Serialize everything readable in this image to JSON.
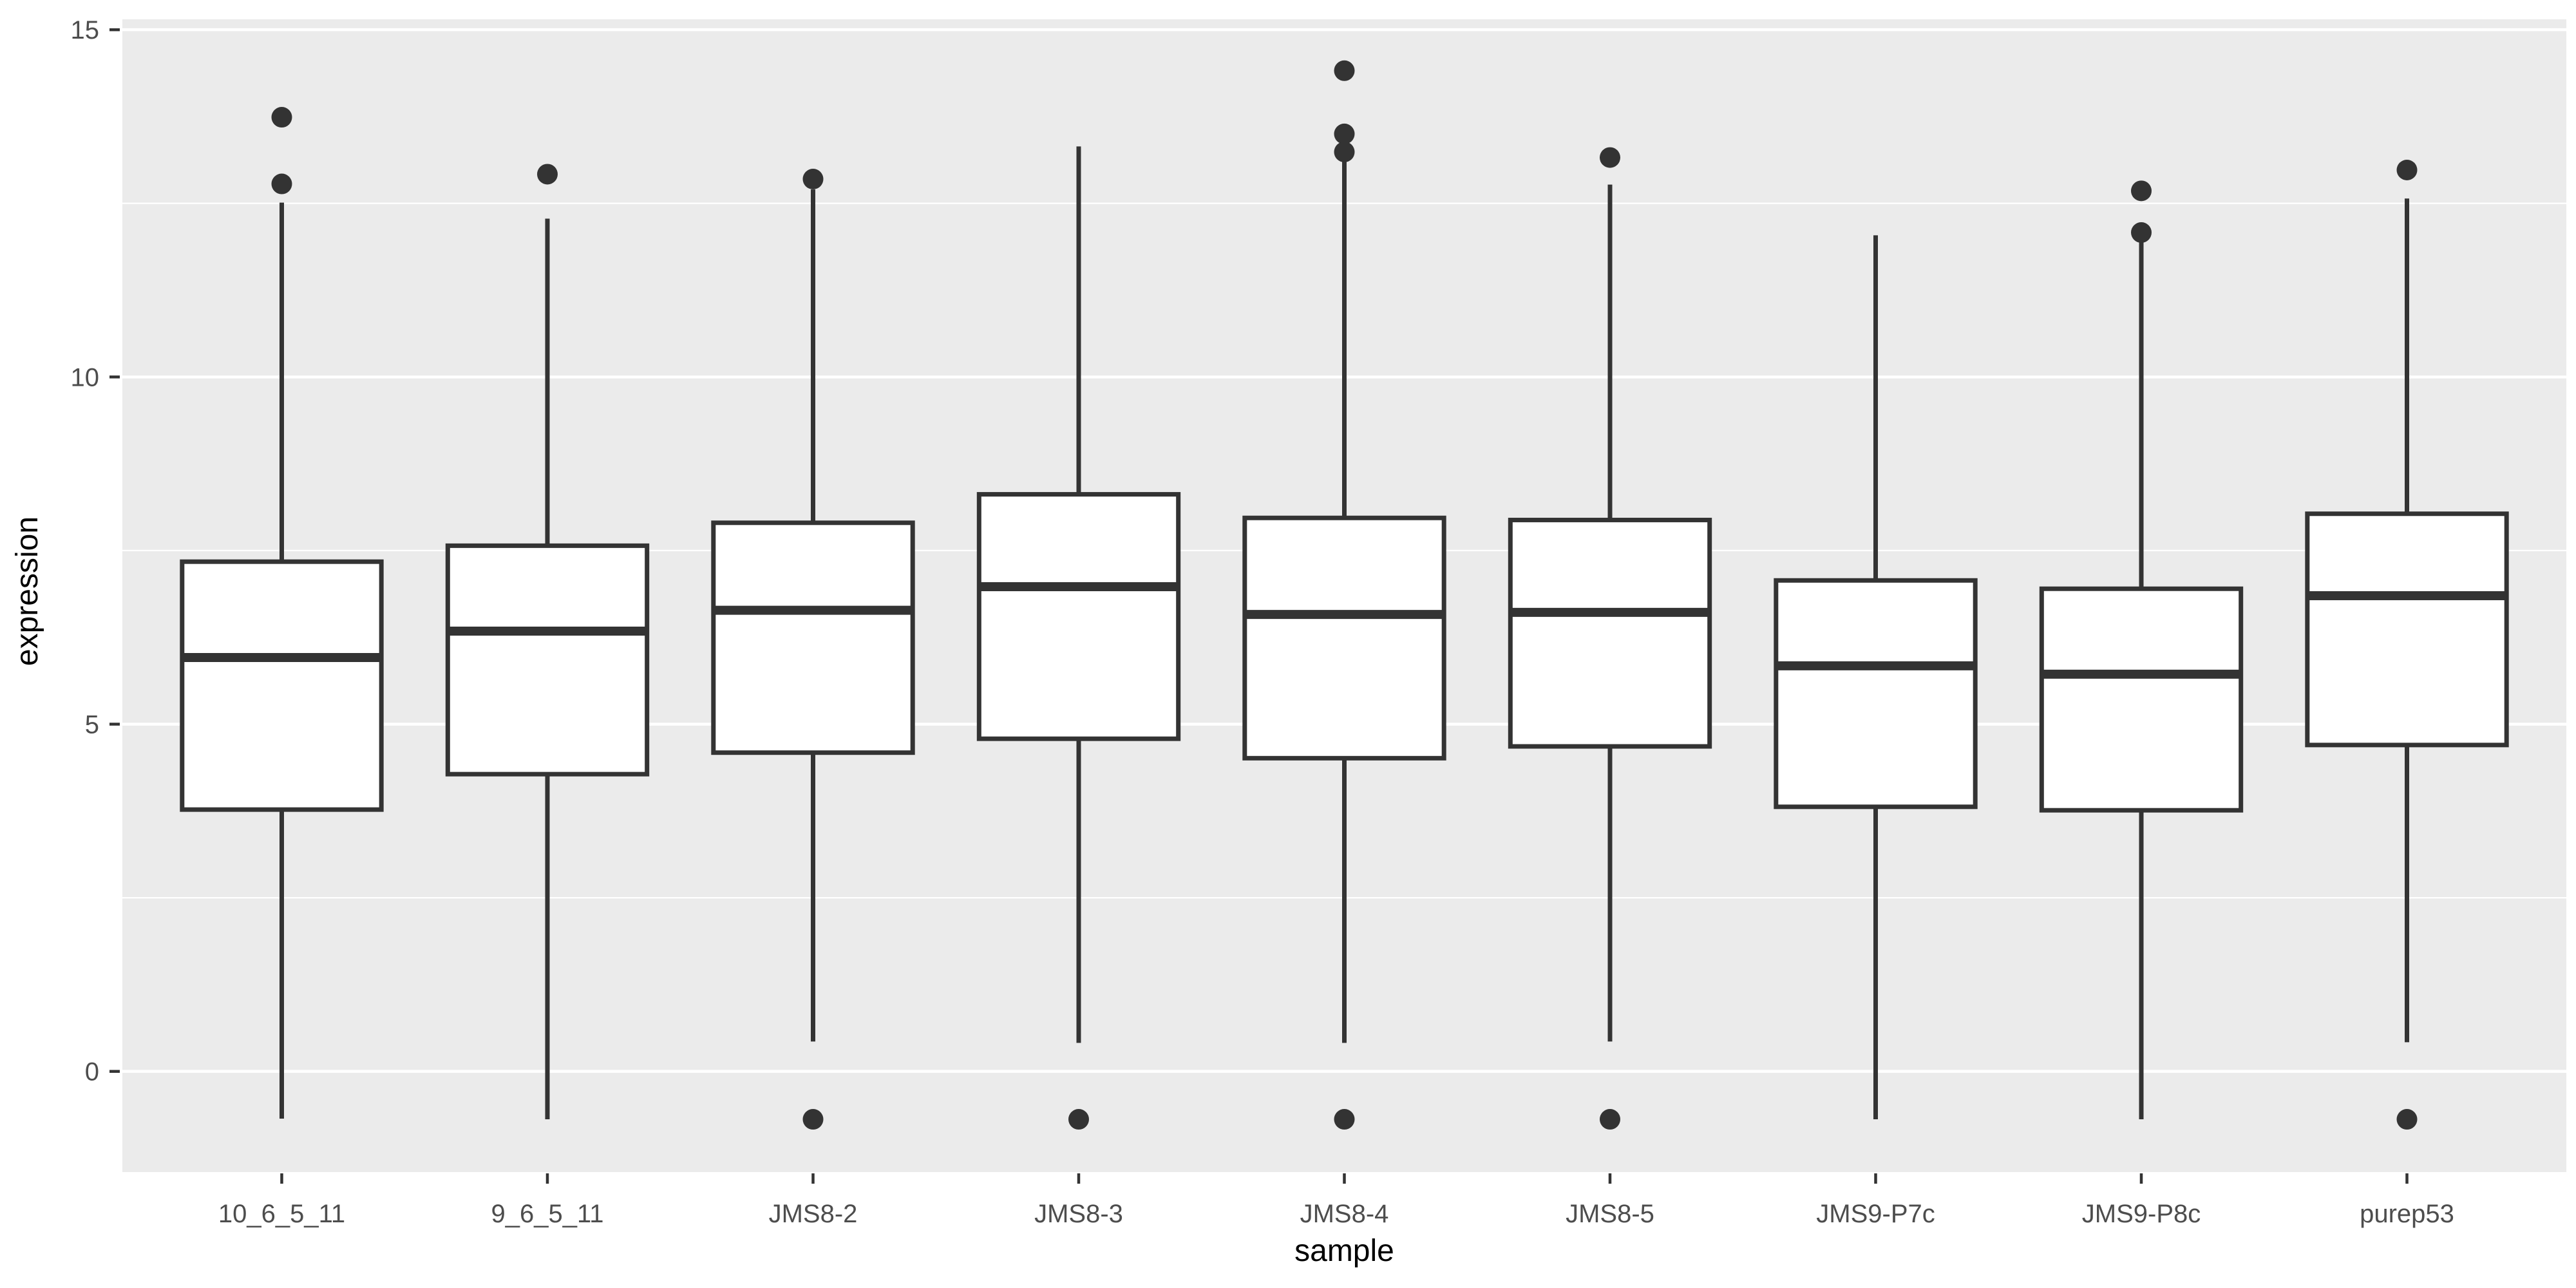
{
  "figure": {
    "background_color": "#FFFFFF",
    "panel_background_color": "#EBEBEB",
    "grid_color": "#FFFFFF",
    "box_fill_color": "#FFFFFF",
    "box_line_color": "#333333",
    "tick_label_color": "#4D4D4D",
    "axis_title_color": "#000000"
  },
  "chart_data": {
    "type": "boxplot",
    "title": "",
    "xlabel": "sample",
    "ylabel": "expression",
    "legend": "none",
    "grid": "on",
    "ylim": [
      -1.45,
      15.15
    ],
    "y_ticks": [
      0,
      5,
      10,
      15
    ],
    "y_tick_labels": [
      "0",
      "5",
      "10",
      "15"
    ],
    "y_minor_ticks": [
      2.5,
      7.5,
      12.5
    ],
    "categories": [
      "10_6_5_11",
      "9_6_5_11",
      "JMS8-2",
      "JMS8-3",
      "JMS8-4",
      "JMS8-5",
      "JMS9-P7c",
      "JMS9-P8c",
      "purep53"
    ],
    "series": [
      {
        "name": "10_6_5_11",
        "q1": 3.77,
        "median": 5.96,
        "q3": 7.34,
        "whisker_low": -0.68,
        "whisker_high": 12.51,
        "outliers": [
          12.78,
          13.74
        ]
      },
      {
        "name": "9_6_5_11",
        "q1": 4.28,
        "median": 6.34,
        "q3": 7.57,
        "whisker_low": -0.69,
        "whisker_high": 12.28,
        "outliers": [
          12.92
        ]
      },
      {
        "name": "JMS8-2",
        "q1": 4.59,
        "median": 6.64,
        "q3": 7.9,
        "whisker_low": 0.43,
        "whisker_high": 12.7,
        "outliers": [
          12.85,
          -0.69
        ]
      },
      {
        "name": "JMS8-3",
        "q1": 4.79,
        "median": 6.98,
        "q3": 8.31,
        "whisker_low": 0.41,
        "whisker_high": 13.32,
        "outliers": [
          -0.69
        ]
      },
      {
        "name": "JMS8-4",
        "q1": 4.51,
        "median": 6.58,
        "q3": 7.97,
        "whisker_low": 0.41,
        "whisker_high": 13.11,
        "outliers": [
          14.41,
          13.5,
          13.24,
          -0.69
        ]
      },
      {
        "name": "JMS8-5",
        "q1": 4.68,
        "median": 6.61,
        "q3": 7.94,
        "whisker_low": 0.43,
        "whisker_high": 12.77,
        "outliers": [
          13.16,
          -0.69
        ]
      },
      {
        "name": "JMS9-P7c",
        "q1": 3.81,
        "median": 5.84,
        "q3": 7.07,
        "whisker_low": -0.69,
        "whisker_high": 12.04,
        "outliers": []
      },
      {
        "name": "JMS9-P8c",
        "q1": 3.76,
        "median": 5.72,
        "q3": 6.95,
        "whisker_low": -0.69,
        "whisker_high": 11.95,
        "outliers": [
          12.68,
          12.08
        ]
      },
      {
        "name": "purep53",
        "q1": 4.7,
        "median": 6.85,
        "q3": 8.03,
        "whisker_low": 0.42,
        "whisker_high": 12.57,
        "outliers": [
          12.98,
          -0.69
        ]
      }
    ]
  }
}
